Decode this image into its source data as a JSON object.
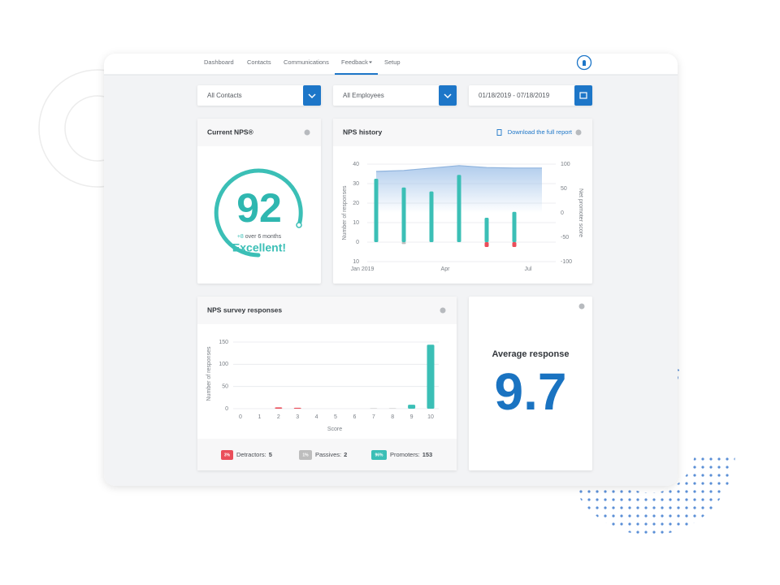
{
  "nav": [
    "Dashboard",
    "Contacts",
    "Communications",
    "Feedback",
    "Setup"
  ],
  "filters": {
    "contacts": "All Contacts",
    "employees": "All Employees",
    "dates": "01/18/2019 - 07/18/2019"
  },
  "current_nps": {
    "title": "Current NPS®",
    "value": 92,
    "change": "+8",
    "change_text": "over 6 months",
    "rating": "Excellent!"
  },
  "nps_history": {
    "title": "NPS history",
    "link": "Download the full report"
  },
  "survey_responses": {
    "title": "NPS survey responses",
    "legend": [
      {
        "badge": "3%",
        "label": "Detractors:",
        "count": 5,
        "color": "#ea4e5a"
      },
      {
        "badge": "1%",
        "label": "Passives:",
        "count": 2,
        "color": "#bdbdbd"
      },
      {
        "badge": "96%",
        "label": "Promoters:",
        "count": 153,
        "color": "#3bbfb6"
      }
    ]
  },
  "average": {
    "title": "Average response",
    "value": 9.7
  },
  "chart_data": [
    {
      "type": "bar",
      "xlim": [
        -0.5,
        6.5
      ],
      "xticks": [
        {
          "value": 0,
          "label": "Jan 2019"
        },
        {
          "value": 3,
          "label": "Apr"
        },
        {
          "value": 6,
          "label": "Jul"
        }
      ],
      "x": [
        0.5,
        1.5,
        2.5,
        3.5,
        4.5,
        5.5
      ],
      "ylabel": "Number of responses",
      "y2label": "Net promoter score",
      "ylim": [
        -10,
        40
      ],
      "yticks": [
        40,
        30,
        20,
        10,
        0,
        {
          "value": -10,
          "label": "10"
        }
      ],
      "y2lim": [
        -100,
        100
      ],
      "y2ticks": [
        100,
        50,
        0,
        -50,
        -100
      ],
      "grid": true,
      "series": [
        {
          "color": "#3bbfb6",
          "values": [
            32.5,
            28,
            26,
            34.5,
            12.5,
            15.5
          ]
        },
        {
          "colors": [
            "#ea4e5a",
            "#bdbdbd",
            "#ea4e5a",
            "#ea4e5a",
            "#ea4e5a",
            "#ea4e5a"
          ],
          "values": [
            0,
            -1,
            0,
            0,
            -2.5,
            -2.5
          ]
        },
        {
          "type": "area",
          "axis": "y2",
          "color": "#8fb3dd",
          "x": [
            0.5,
            1.5,
            2.5,
            3.5,
            4.5,
            5.5,
            6.5
          ],
          "values": [
            85,
            87,
            92,
            97,
            93,
            92,
            92
          ]
        }
      ]
    },
    {
      "type": "bar",
      "categories": [
        "0",
        "1",
        "2",
        "3",
        "4",
        "5",
        "6",
        "7",
        "8",
        "9",
        "10"
      ],
      "values": [
        0,
        0,
        3,
        2,
        0,
        0,
        0,
        1,
        1,
        9,
        144
      ],
      "colors": [
        "#ea4e5a",
        "#ea4e5a",
        "#ea4e5a",
        "#ea4e5a",
        "#ea4e5a",
        "#ea4e5a",
        "#ea4e5a",
        "#bdbdbd",
        "#bdbdbd",
        "#3bbfb6",
        "#3bbfb6"
      ],
      "xlabel": "Score",
      "ylabel": "Number of responses",
      "ylim": [
        0,
        150
      ],
      "yticks": [
        0,
        50,
        100,
        150
      ],
      "grid": true
    }
  ]
}
